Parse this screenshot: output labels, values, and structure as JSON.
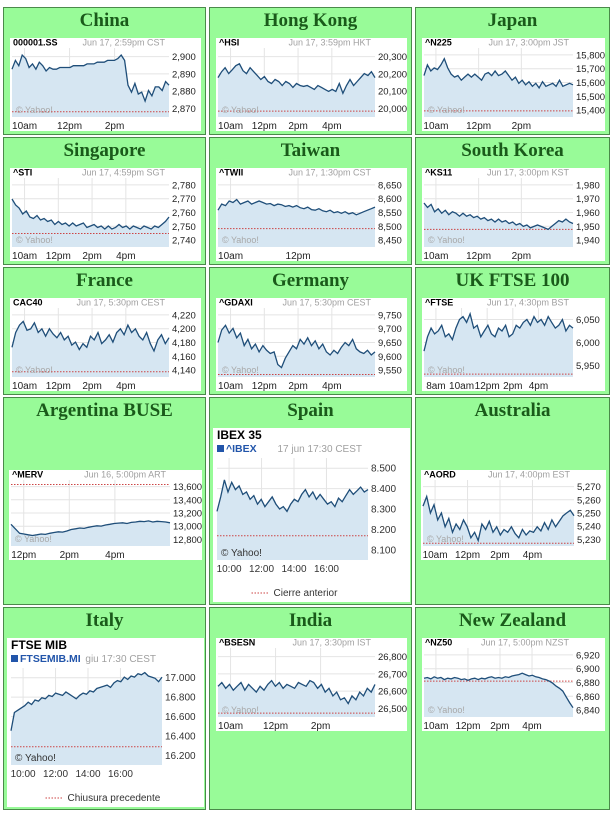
{
  "colors": {
    "cell_bg": "#98fb98",
    "title": "#1a5a1a",
    "line": "#1f4e79",
    "fill": "#d6e6f2",
    "prev_close": "#cc4444",
    "grid": "#e4e4e4"
  },
  "cells": [
    {
      "country": "China",
      "symbol": "000001.SS",
      "timestamp": "Jun 17, 2:59pm CST",
      "yticks": [
        "2,900",
        "2,890",
        "2,880",
        "2,870"
      ],
      "xticks": [
        "10am",
        "12pm",
        "2pm"
      ],
      "watermark": "© Yahoo!",
      "chart_data": {
        "type": "area",
        "ylim": [
          2866,
          2905
        ],
        "prev_close": 2869,
        "values": [
          2893,
          2898,
          2895,
          2901,
          2899,
          2894,
          2896,
          2893,
          2897,
          2895,
          2892,
          2894,
          2893,
          2893,
          2894,
          2894,
          2894,
          2894,
          2895,
          2895,
          2895,
          2895,
          2896,
          2896,
          2896,
          2897,
          2897,
          2897,
          2898,
          2898,
          2898,
          2899,
          2901,
          2898,
          2884,
          2880,
          2885,
          2879,
          2880,
          2875,
          2881,
          2878,
          2883,
          2883,
          2881,
          2886,
          2884
        ]
      }
    },
    {
      "country": "Hong Kong",
      "symbol": "^HSI",
      "timestamp": "Jun 17, 3:59pm HKT",
      "yticks": [
        "20,300",
        "20,200",
        "20,100",
        "20,000"
      ],
      "xticks": [
        "10am",
        "12pm",
        "2pm",
        "4pm"
      ],
      "watermark": "© Yahoo!",
      "chart_data": {
        "type": "area",
        "ylim": [
          19980,
          20330
        ],
        "prev_close": 20010,
        "values": [
          20180,
          20210,
          20230,
          20200,
          20220,
          20240,
          20250,
          20215,
          20200,
          20230,
          20210,
          20190,
          20170,
          20185,
          20160,
          20150,
          20170,
          20160,
          20140,
          20160,
          20150,
          20130,
          20150,
          20140,
          20135,
          20140,
          20130,
          20120,
          20140,
          20130,
          20120,
          20110,
          20120,
          20110,
          20150,
          20100,
          20140,
          20170,
          20140,
          20160,
          20180,
          20200,
          20190,
          20210,
          20180
        ]
      }
    },
    {
      "country": "Japan",
      "symbol": "^N225",
      "timestamp": "Jun 17, 3:00pm JST",
      "yticks": [
        "15,800",
        "15,700",
        "15,600",
        "15,500",
        "15,400"
      ],
      "xticks": [
        "10am",
        "12pm",
        "2pm"
      ],
      "watermark": "© Yahoo!",
      "chart_data": {
        "type": "area",
        "ylim": [
          15380,
          15830
        ],
        "prev_close": 15420,
        "values": [
          15650,
          15720,
          15680,
          15700,
          15690,
          15720,
          15760,
          15700,
          15660,
          15640,
          15650,
          15620,
          15640,
          15660,
          15640,
          15660,
          15640,
          15620,
          15660,
          15670,
          15650,
          15680,
          15650,
          15660,
          15680,
          15650,
          15620,
          15640,
          15600,
          15620,
          15590,
          15610,
          15580,
          15600,
          15570,
          15610,
          15580,
          15590,
          15600,
          15580,
          15620,
          15580,
          15590,
          15600,
          15590
        ]
      }
    },
    {
      "country": "Singapore",
      "symbol": "^STI",
      "timestamp": "Jun 17, 4:59pm SGT",
      "yticks": [
        "2,780",
        "2,770",
        "2,760",
        "2,750",
        "2,740"
      ],
      "xticks": [
        "10am",
        "12pm",
        "2pm",
        "4pm"
      ],
      "watermark": "© Yahoo!",
      "chart_data": {
        "type": "area",
        "ylim": [
          2738,
          2784
        ],
        "prev_close": 2747,
        "values": [
          2770,
          2766,
          2764,
          2760,
          2762,
          2758,
          2757,
          2759,
          2756,
          2757,
          2755,
          2756,
          2753,
          2755,
          2753,
          2754,
          2752,
          2754,
          2752,
          2753,
          2754,
          2751,
          2752,
          2753,
          2751,
          2752,
          2750,
          2752,
          2750,
          2751,
          2753,
          2751,
          2752,
          2750,
          2752,
          2751,
          2750,
          2752,
          2751,
          2750,
          2752,
          2751,
          2753,
          2755,
          2758
        ]
      }
    },
    {
      "country": "Taiwan",
      "symbol": "^TWII",
      "timestamp": "Jun 17, 1:30pm CST",
      "yticks": [
        "8,650",
        "8,600",
        "8,550",
        "8,500",
        "8,450"
      ],
      "xticks": [
        "10am",
        "12pm"
      ],
      "watermark": "© Yahoo!",
      "chart_data": {
        "type": "area",
        "ylim": [
          8440,
          8665
        ],
        "prev_close": 8500,
        "values": [
          8560,
          8580,
          8575,
          8590,
          8585,
          8595,
          8580,
          8585,
          8590,
          8580,
          8585,
          8590,
          8585,
          8580,
          8582,
          8575,
          8580,
          8578,
          8572,
          8575,
          8570,
          8575,
          8568,
          8565,
          8570,
          8562,
          8560,
          8565,
          8558,
          8555,
          8560,
          8552,
          8555,
          8550,
          8555,
          8548,
          8552,
          8545,
          8550,
          8555,
          8560,
          8565,
          8570
        ]
      }
    },
    {
      "country": "South Korea",
      "symbol": "^KS11",
      "timestamp": "Jun 17, 3:00pm KST",
      "yticks": [
        "1,980",
        "1,970",
        "1,960",
        "1,950",
        "1,940"
      ],
      "xticks": [
        "10am",
        "12pm",
        "2pm"
      ],
      "watermark": "© Yahoo!",
      "chart_data": {
        "type": "area",
        "ylim": [
          1938,
          1985
        ],
        "prev_close": 1950,
        "values": [
          1968,
          1965,
          1967,
          1962,
          1964,
          1961,
          1963,
          1960,
          1962,
          1961,
          1959,
          1961,
          1959,
          1960,
          1958,
          1959,
          1957,
          1958,
          1956,
          1957,
          1955,
          1957,
          1955,
          1956,
          1954,
          1955,
          1953,
          1954,
          1952,
          1953,
          1951,
          1952,
          1953,
          1952,
          1951,
          1950,
          1952,
          1954,
          1956,
          1955,
          1957,
          1955,
          1954
        ]
      }
    },
    {
      "country": "France",
      "symbol": "CAC40",
      "timestamp": "Jun 17, 5:30pm CEST",
      "yticks": [
        "4,220",
        "4,200",
        "4,180",
        "4,160",
        "4,140"
      ],
      "xticks": [
        "10am",
        "12pm",
        "2pm",
        "4pm"
      ],
      "watermark": "© Yahoo!",
      "chart_data": {
        "type": "area",
        "ylim": [
          4135,
          4228
        ],
        "prev_close": 4142,
        "values": [
          4175,
          4195,
          4205,
          4210,
          4198,
          4200,
          4208,
          4195,
          4200,
          4190,
          4200,
          4193,
          4188,
          4195,
          4185,
          4190,
          4178,
          4182,
          4172,
          4180,
          4175,
          4190,
          4185,
          4195,
          4180,
          4185,
          4192,
          4182,
          4195,
          4200,
          4192,
          4205,
          4195,
          4200,
          4190,
          4185,
          4195,
          4180,
          4170,
          4185,
          4192,
          4180,
          4188
        ]
      }
    },
    {
      "country": "Germany",
      "symbol": "^GDAXI",
      "timestamp": "Jun 17, 5:30pm CEST",
      "yticks": [
        "9,750",
        "9,700",
        "9,650",
        "9,600",
        "9,550"
      ],
      "xticks": [
        "10am",
        "12pm",
        "2pm",
        "4pm"
      ],
      "watermark": "© Yahoo!",
      "chart_data": {
        "type": "area",
        "ylim": [
          9540,
          9760
        ],
        "prev_close": 9548,
        "values": [
          9650,
          9690,
          9705,
          9680,
          9695,
          9665,
          9680,
          9640,
          9660,
          9630,
          9645,
          9620,
          9640,
          9625,
          9615,
          9620,
          9580,
          9570,
          9600,
          9620,
          9640,
          9630,
          9660,
          9645,
          9665,
          9640,
          9655,
          9630,
          9645,
          9620,
          9610,
          9625,
          9615,
          9635,
          9650,
          9640,
          9660,
          9630,
          9620,
          9615,
          9625,
          9610,
          9620
        ]
      }
    },
    {
      "country": "UK FTSE 100",
      "symbol": "^FTSE",
      "timestamp": "Jun 17, 4:30pm BST",
      "yticks": [
        "6,050",
        "6,000",
        "5,950"
      ],
      "xticks": [
        "8am",
        "10am",
        "12pm",
        "2pm",
        "4pm"
      ],
      "watermark": "© Yahoo!",
      "chart_data": {
        "type": "area",
        "ylim": [
          5940,
          6060
        ],
        "prev_close": 5945,
        "values": [
          5985,
          6010,
          6025,
          6015,
          6020,
          6030,
          6010,
          6015,
          6005,
          6025,
          6040,
          6045,
          6035,
          6050,
          6025,
          6030,
          6010,
          6020,
          6030,
          6015,
          6010,
          6025,
          6020,
          6030,
          6010,
          6015,
          6030,
          6025,
          6035,
          6040,
          6030,
          6045,
          6035,
          6040,
          6030,
          6045,
          6035,
          6025,
          6030,
          6040,
          6020,
          6030,
          6025
        ]
      }
    },
    {
      "country": "Argentina BUSE",
      "symbol": "^MERV",
      "timestamp": "Jun 16, 5:00pm ART",
      "yticks": [
        "13,600",
        "13,400",
        "13,200",
        "13,000",
        "12,800"
      ],
      "xticks": [
        "12pm",
        "2pm",
        "4pm"
      ],
      "watermark": "© Yahoo!",
      "chart_data": {
        "type": "area",
        "ylim": [
          12760,
          13640
        ],
        "prev_close": 13580,
        "values": [
          13050,
          12990,
          12930,
          12920,
          12910,
          12900,
          12910,
          12920,
          12915,
          12930,
          12940,
          12950,
          12945,
          12960,
          12980,
          12990,
          13000,
          12995,
          13010,
          13020,
          13030,
          13025,
          13040,
          13050,
          13060,
          13065,
          13070,
          13060,
          13075,
          13080,
          13090,
          13085,
          13095,
          13080,
          13090,
          13085,
          13080,
          13070
        ]
      }
    },
    {
      "country": "Spain",
      "symbol": "^IBEX",
      "index_name": "IBEX 35",
      "timestamp": "17 jun 17:30 CEST",
      "yticks": [
        "8.500",
        "8.400",
        "8.300",
        "8.200",
        "8.100"
      ],
      "xticks": [
        "10:00",
        "12:00",
        "14:00",
        "16:00"
      ],
      "watermark": "© Yahoo!",
      "legend": "Cierre anterior",
      "chart_data": {
        "type": "area",
        "ylim": [
          8090,
          8510
        ],
        "prev_close": 8190,
        "values": [
          8290,
          8350,
          8420,
          8370,
          8410,
          8380,
          8395,
          8360,
          8370,
          8340,
          8355,
          8320,
          8340,
          8310,
          8330,
          8350,
          8320,
          8300,
          8310,
          8290,
          8320,
          8340,
          8330,
          8360,
          8380,
          8350,
          8370,
          8340,
          8360,
          8340,
          8320,
          8330,
          8310,
          8345,
          8330,
          8355,
          8380,
          8360,
          8375,
          8390,
          8370,
          8380
        ]
      }
    },
    {
      "country": "Australia",
      "symbol": "^AORD",
      "timestamp": "Jun 17, 4:00pm EST",
      "yticks": [
        "5,270",
        "5,260",
        "5,250",
        "5,240",
        "5,230"
      ],
      "xticks": [
        "10am",
        "12pm",
        "2pm",
        "4pm"
      ],
      "watermark": "© Yahoo!",
      "chart_data": {
        "type": "area",
        "ylim": [
          5226,
          5274
        ],
        "prev_close": 5228,
        "values": [
          5255,
          5262,
          5250,
          5256,
          5245,
          5250,
          5240,
          5246,
          5236,
          5242,
          5238,
          5245,
          5240,
          5232,
          5236,
          5230,
          5242,
          5238,
          5244,
          5236,
          5240,
          5234,
          5238,
          5236,
          5240,
          5235,
          5232,
          5238,
          5234,
          5237,
          5236,
          5240,
          5237,
          5243,
          5238,
          5245,
          5240,
          5244,
          5248,
          5250,
          5252,
          5248
        ]
      }
    },
    {
      "country": "Italy",
      "symbol": "FTSEMIB.MI",
      "index_name": "FTSE MIB",
      "timestamp": "giu 17:30 CEST",
      "yticks": [
        "17.000",
        "16.800",
        "16.600",
        "16.400",
        "16.200"
      ],
      "xticks": [
        "10:00",
        "12:00",
        "14:00",
        "16:00"
      ],
      "watermark": "© Yahoo!",
      "legend": "Chiusura precedente",
      "chart_data": {
        "type": "area",
        "ylim": [
          16180,
          17030
        ],
        "prev_close": 16340,
        "values": [
          16480,
          16640,
          16660,
          16680,
          16700,
          16730,
          16710,
          16750,
          16740,
          16770,
          16760,
          16790,
          16780,
          16810,
          16800,
          16790,
          16820,
          16800,
          16780,
          16760,
          16790,
          16810,
          16800,
          16830,
          16820,
          16850,
          16860,
          16870,
          16880,
          16860,
          16900,
          16920,
          16910,
          16950,
          16930,
          16960,
          16950,
          16980,
          16970,
          16990,
          16960,
          16950,
          16940,
          16910,
          16950
        ]
      }
    },
    {
      "country": "India",
      "symbol": "^BSESN",
      "timestamp": "Jun 17, 3:30pm IST",
      "yticks": [
        "26,800",
        "26,700",
        "26,600",
        "26,500"
      ],
      "xticks": [
        "10am",
        "12pm",
        "2pm"
      ],
      "watermark": "© Yahoo!",
      "chart_data": {
        "type": "area",
        "ylim": [
          26470,
          26830
        ],
        "prev_close": 26490,
        "values": [
          26630,
          26650,
          26620,
          26640,
          26610,
          26630,
          26650,
          26610,
          26640,
          26620,
          26600,
          26630,
          26610,
          26640,
          26660,
          26630,
          26650,
          26620,
          26640,
          26630,
          26620,
          26650,
          26640,
          26630,
          26660,
          26650,
          26620,
          26640,
          26600,
          26620,
          26580,
          26600,
          26560,
          26570,
          26540,
          26580,
          26560,
          26600,
          26580,
          26620,
          26600,
          26640
        ]
      }
    },
    {
      "country": "New Zealand",
      "symbol": "^NZ50",
      "timestamp": "Jun 17, 5:00pm NZST",
      "yticks": [
        "6,920",
        "6,900",
        "6,880",
        "6,860",
        "6,840"
      ],
      "xticks": [
        "10am",
        "12pm",
        "2pm",
        "4pm"
      ],
      "watermark": "© Yahoo!",
      "chart_data": {
        "type": "area",
        "ylim": [
          6832,
          6928
        ],
        "prev_close": 6882,
        "values": [
          6886,
          6887,
          6885,
          6888,
          6886,
          6887,
          6884,
          6886,
          6885,
          6887,
          6886,
          6884,
          6885,
          6883,
          6885,
          6886,
          6884,
          6886,
          6885,
          6887,
          6888,
          6886,
          6887,
          6886,
          6888,
          6887,
          6889,
          6890,
          6891,
          6893,
          6891,
          6889,
          6890,
          6888,
          6887,
          6885,
          6884,
          6882,
          6879,
          6875,
          6872,
          6868,
          6860,
          6852,
          6845
        ]
      }
    }
  ]
}
